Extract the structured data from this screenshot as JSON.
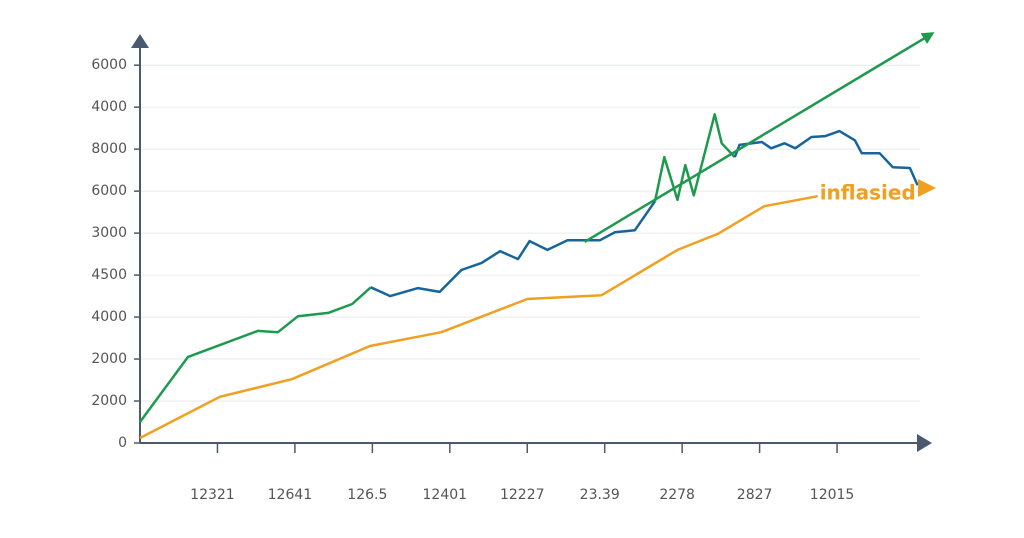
{
  "chart_data": {
    "type": "line",
    "xlim": [
      0,
      10.2
    ],
    "ylim": [
      0,
      9.6
    ],
    "grid": true,
    "xticks": [
      {
        "value": 1,
        "label": "12321"
      },
      {
        "value": 2,
        "label": "12641"
      },
      {
        "value": 3,
        "label": "126.5"
      },
      {
        "value": 4,
        "label": "12401"
      },
      {
        "value": 5,
        "label": "12227"
      },
      {
        "value": 6,
        "label": "23.39"
      },
      {
        "value": 7,
        "label": "2278"
      },
      {
        "value": 8,
        "label": "2827"
      },
      {
        "value": 9,
        "label": "12015"
      }
    ],
    "yticks": [
      {
        "value": 0,
        "label": "0"
      },
      {
        "value": 1,
        "label": "2000"
      },
      {
        "value": 2,
        "label": "2000"
      },
      {
        "value": 3,
        "label": "4000"
      },
      {
        "value": 4,
        "label": "4500"
      },
      {
        "value": 5,
        "label": "3000"
      },
      {
        "value": 6,
        "label": "6000"
      },
      {
        "value": 7,
        "label": "8000"
      },
      {
        "value": 8,
        "label": "4000"
      },
      {
        "value": 9,
        "label": "6000"
      }
    ],
    "series": [
      {
        "color": "#1e9a4e",
        "x": [
          0,
          0.62,
          1.52,
          1.78,
          2.04,
          2.43,
          2.74,
          2.98
        ],
        "values": [
          0.5,
          2.05,
          2.67,
          2.64,
          3.02,
          3.1,
          3.31,
          3.71
        ]
      },
      {
        "color": "#17659a",
        "x": [
          2.98,
          3.23,
          3.59,
          3.87,
          4.15,
          4.41,
          4.65,
          4.88,
          5.03,
          5.26,
          5.52,
          5.94,
          6.13,
          6.39,
          6.65
        ],
        "values": [
          3.71,
          3.5,
          3.69,
          3.6,
          4.12,
          4.29,
          4.57,
          4.38,
          4.81,
          4.6,
          4.83,
          4.83,
          5.02,
          5.07,
          5.76
        ]
      },
      {
        "color": "#1e9a4e",
        "x": [
          6.65,
          6.77,
          6.94,
          7.04,
          7.15,
          7.42,
          7.51,
          7.68
        ],
        "values": [
          5.76,
          6.81,
          5.79,
          6.62,
          5.9,
          7.83,
          7.14,
          6.81
        ]
      },
      {
        "color": "#17659a",
        "x": [
          7.68,
          7.74,
          8.03,
          8.15,
          8.32,
          8.46,
          8.67,
          8.85,
          9.03,
          9.23,
          9.32,
          9.55,
          9.72,
          9.94,
          10.04
        ],
        "values": [
          6.81,
          7.1,
          7.17,
          7.02,
          7.14,
          7.02,
          7.29,
          7.31,
          7.43,
          7.21,
          6.9,
          6.9,
          6.57,
          6.55,
          6.14
        ]
      },
      {
        "color": "#1e9a4e",
        "x": [
          5.74,
          10.19
        ],
        "values": [
          4.79,
          9.71
        ]
      },
      {
        "name": "inflasied",
        "color": "#f0a020",
        "x": [
          0,
          1.03,
          1.96,
          2.97,
          3.89,
          5,
          5.96,
          6.94,
          7.46,
          8.06,
          8.75
        ],
        "values": [
          0.12,
          1.1,
          1.52,
          2.31,
          2.64,
          3.43,
          3.52,
          4.6,
          4.98,
          5.64,
          5.88
        ]
      }
    ]
  }
}
